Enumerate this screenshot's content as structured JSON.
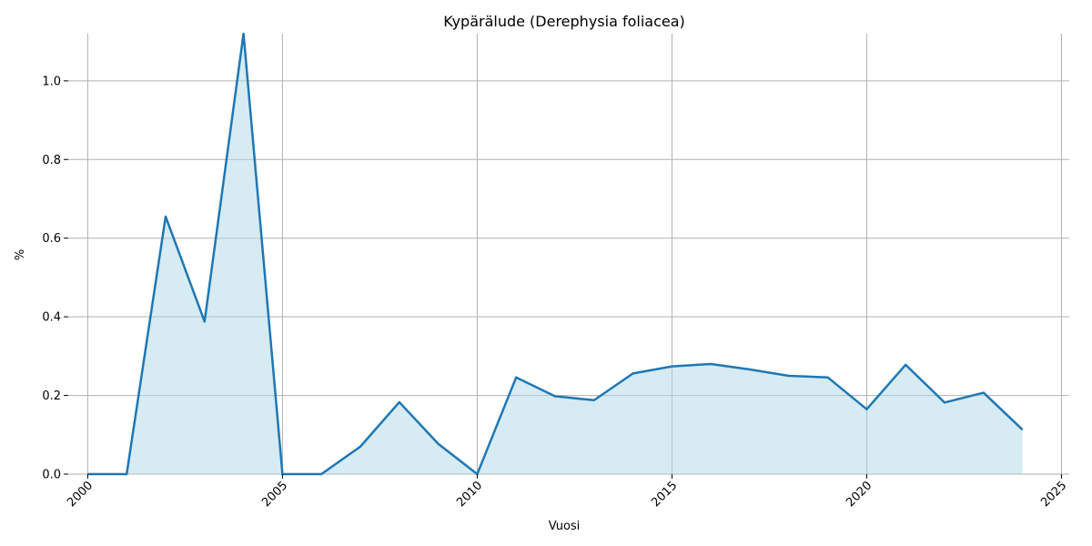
{
  "chart_data": {
    "type": "area",
    "title": "Kypärälude (Derephysia foliacea)",
    "xlabel": "Vuosi",
    "ylabel": "%",
    "xlim": [
      1999.5,
      2025.2
    ],
    "ylim": [
      0,
      1.12
    ],
    "xticks": [
      2000,
      2005,
      2010,
      2015,
      2020,
      2025
    ],
    "yticks": [
      0.0,
      0.2,
      0.4,
      0.6,
      0.8,
      1.0
    ],
    "ytick_labels": [
      "0.0",
      "0.2",
      "0.4",
      "0.6",
      "0.8",
      "1.0"
    ],
    "grid": true,
    "line_color": "#1f77b4",
    "fill_color": "#add8e6",
    "series": [
      {
        "x": [
          2000,
          2001,
          2002,
          2003,
          2004,
          2005,
          2006,
          2007,
          2008,
          2009,
          2010,
          2011,
          2012,
          2013,
          2014,
          2015,
          2016,
          2017,
          2018,
          2019,
          2020,
          2021,
          2022,
          2023,
          2024
        ],
        "values": [
          0.0,
          0.0,
          0.655,
          0.388,
          1.12,
          0.0,
          0.0,
          0.07,
          0.183,
          0.077,
          0.0,
          0.246,
          0.198,
          0.188,
          0.256,
          0.274,
          0.28,
          0.266,
          0.25,
          0.246,
          0.165,
          0.278,
          0.182,
          0.207,
          0.113
        ]
      }
    ]
  }
}
